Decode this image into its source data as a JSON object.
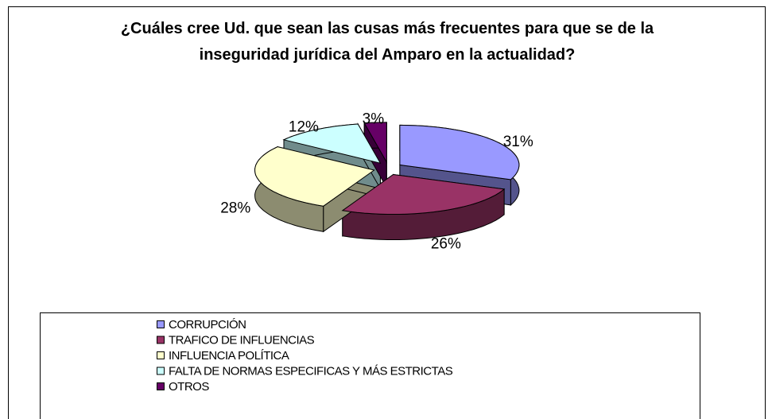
{
  "chart_data": {
    "type": "pie3d",
    "title": "¿Cuáles cree Ud. que sean las cusas más frecuentes para que se de la inseguridad jurídica del Amparo en la actualidad?",
    "categories": [
      "CORRUPCIÓN",
      "TRAFICO DE INFLUENCIAS",
      "INFLUENCIA POLÍTICA",
      "FALTA DE NORMAS ESPECIFICAS Y MÁS ESTRICTAS",
      "OTROS"
    ],
    "values": [
      31,
      26,
      28,
      12,
      3
    ],
    "value_labels": [
      "31%",
      "26%",
      "28%",
      "12%",
      "3%"
    ],
    "colors": [
      "#9999ff",
      "#993366",
      "#ffffcc",
      "#ccffff",
      "#660066"
    ],
    "legend": "bottom"
  }
}
